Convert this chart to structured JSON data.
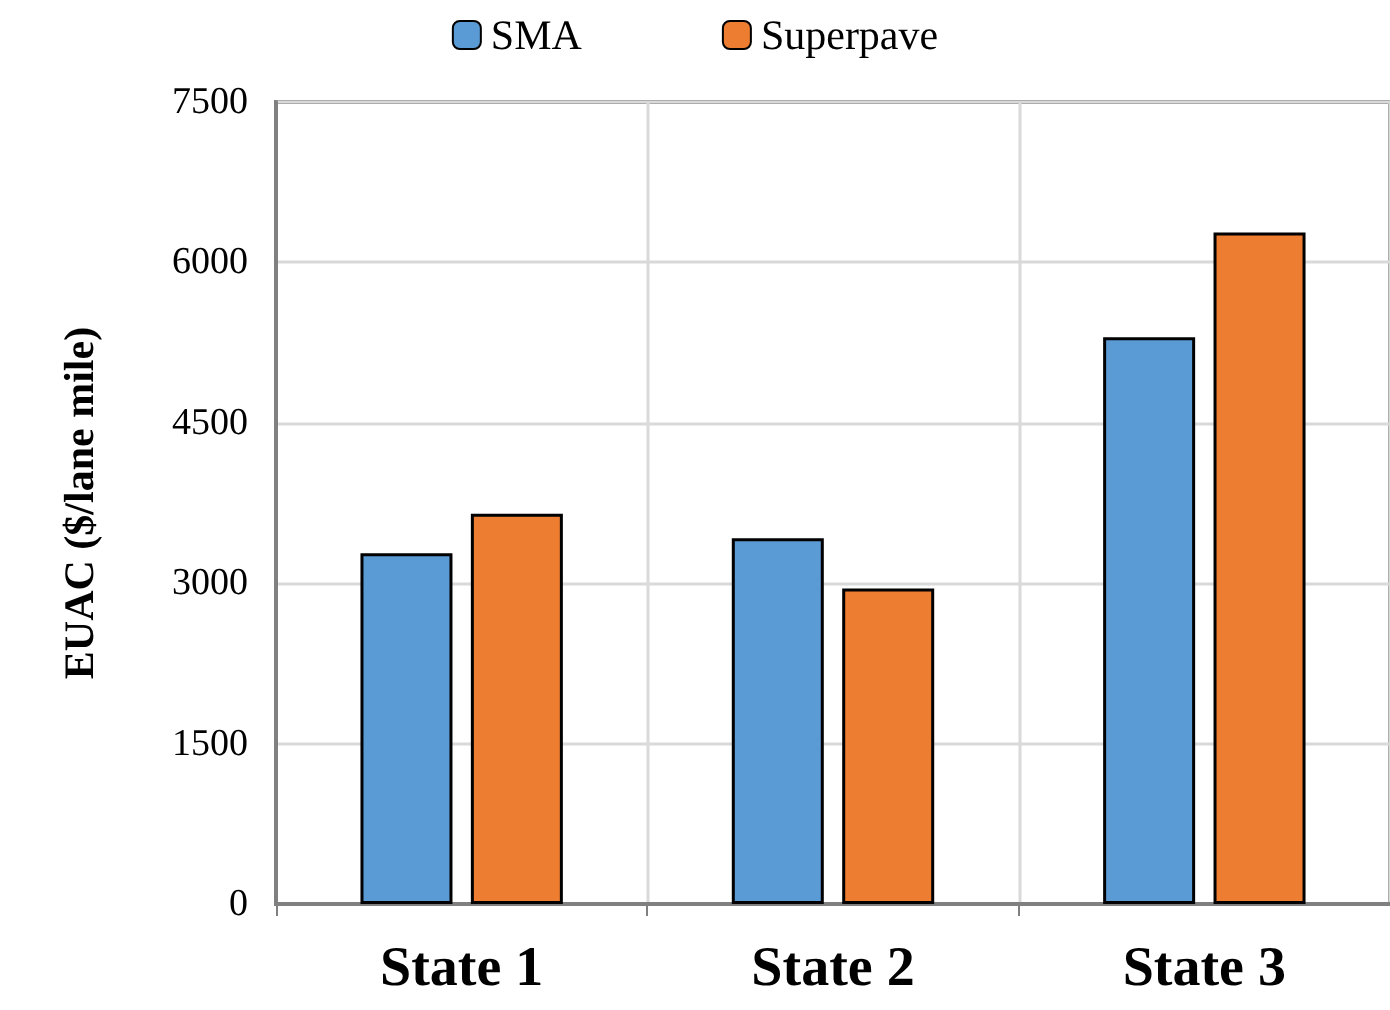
{
  "chart_data": {
    "type": "bar",
    "ylabel": "EUAC ($/lane mile)",
    "categories": [
      "State 1",
      "State 2",
      "State 3"
    ],
    "series": [
      {
        "name": "SMA",
        "color": "#5b9bd5",
        "values": [
          3280,
          3420,
          5300
        ]
      },
      {
        "name": "Superpave",
        "color": "#ed7d31",
        "values": [
          3650,
          2950,
          6280
        ]
      }
    ],
    "ylim": [
      0,
      7500
    ],
    "yticks": [
      0,
      1500,
      3000,
      4500,
      6000,
      7500
    ],
    "grid": true,
    "legend": "top"
  }
}
